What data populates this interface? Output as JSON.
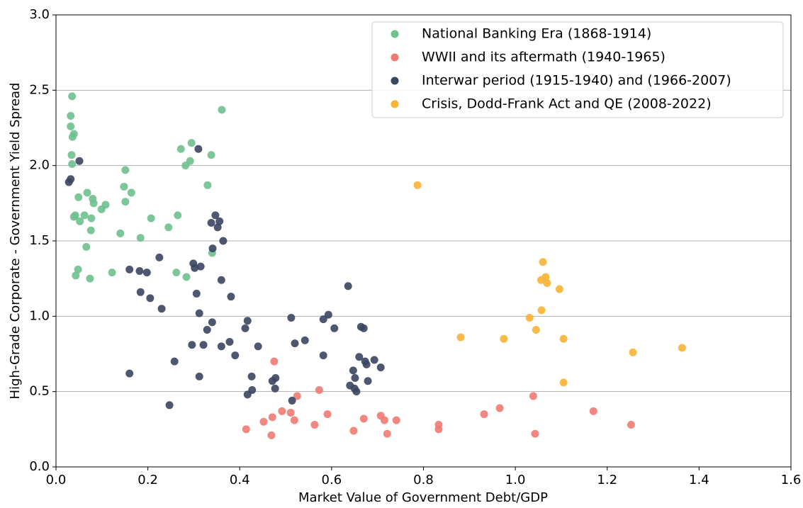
{
  "chart_data": {
    "type": "scatter",
    "xlabel": "Market Value of Government Debt/GDP",
    "ylabel": "High-Grade Corporate - Government Yield Spread",
    "xlim": [
      0,
      1.6
    ],
    "ylim": [
      0,
      3.0
    ],
    "xticks": [
      {
        "value": 0,
        "label": "0.0"
      },
      {
        "value": 0.2,
        "label": "0.2"
      },
      {
        "value": 0.4,
        "label": "0.4"
      },
      {
        "value": 0.6,
        "label": "0.6"
      },
      {
        "value": 0.8,
        "label": "0.8"
      },
      {
        "value": 1.0,
        "label": "1.0"
      },
      {
        "value": 1.2,
        "label": "1.2"
      },
      {
        "value": 1.4,
        "label": "1.4"
      },
      {
        "value": 1.6,
        "label": "1.6"
      }
    ],
    "yticks": [
      {
        "value": 0,
        "label": "0.0"
      },
      {
        "value": 0.5,
        "label": "0.5"
      },
      {
        "value": 1.0,
        "label": "1.0"
      },
      {
        "value": 1.5,
        "label": "1.5"
      },
      {
        "value": 2.0,
        "label": "2.0"
      },
      {
        "value": 2.5,
        "label": "2.5"
      },
      {
        "value": 3.0,
        "label": "3.0"
      }
    ],
    "grid": "y",
    "legend": "upper right",
    "series": [
      {
        "name": "National Banking Era (1868-1914)",
        "color": "#6fc08e",
        "x": [
          0.035,
          0.032,
          0.032,
          0.039,
          0.036,
          0.034,
          0.035,
          0.039,
          0.042,
          0.049,
          0.052,
          0.062,
          0.068,
          0.066,
          0.076,
          0.077,
          0.08,
          0.082,
          0.099,
          0.108,
          0.048,
          0.043,
          0.074,
          0.122,
          0.14,
          0.151,
          0.148,
          0.151,
          0.164,
          0.184,
          0.207,
          0.245,
          0.265,
          0.262,
          0.272,
          0.282,
          0.292,
          0.295,
          0.284,
          0.33,
          0.338,
          0.361,
          0.34
        ],
        "values": [
          2.46,
          2.33,
          2.26,
          2.21,
          2.19,
          2.07,
          2.01,
          1.66,
          1.67,
          1.79,
          1.63,
          1.67,
          1.82,
          1.46,
          1.57,
          1.65,
          1.78,
          1.75,
          1.71,
          1.74,
          1.31,
          1.27,
          1.25,
          1.29,
          1.55,
          1.97,
          1.86,
          1.76,
          1.82,
          1.52,
          1.65,
          1.59,
          1.67,
          1.29,
          2.11,
          2.0,
          2.03,
          2.15,
          1.26,
          1.87,
          2.07,
          2.37,
          1.42
        ]
      },
      {
        "name": "WWII and its aftermath (1940-1965)",
        "color": "#f07a72",
        "x": [
          0.475,
          0.414,
          0.452,
          0.471,
          0.469,
          0.492,
          0.511,
          0.519,
          0.525,
          0.563,
          0.573,
          0.591,
          0.648,
          0.67,
          0.707,
          0.715,
          0.721,
          0.741,
          0.833,
          0.833,
          0.932,
          0.966,
          1.039,
          1.043,
          1.17,
          1.252
        ],
        "values": [
          0.7,
          0.25,
          0.3,
          0.33,
          0.21,
          0.37,
          0.36,
          0.31,
          0.47,
          0.28,
          0.51,
          0.35,
          0.24,
          0.32,
          0.34,
          0.31,
          0.22,
          0.31,
          0.28,
          0.25,
          0.35,
          0.39,
          0.47,
          0.22,
          0.37,
          0.28
        ]
      },
      {
        "name": "Interwar period (1915-1940) and (1966-2007)",
        "color": "#3a4660",
        "x": [
          0.028,
          0.032,
          0.051,
          0.16,
          0.16,
          0.182,
          0.198,
          0.184,
          0.205,
          0.225,
          0.23,
          0.247,
          0.258,
          0.296,
          0.299,
          0.302,
          0.306,
          0.31,
          0.312,
          0.312,
          0.315,
          0.321,
          0.329,
          0.338,
          0.34,
          0.341,
          0.347,
          0.352,
          0.356,
          0.36,
          0.364,
          0.36,
          0.378,
          0.381,
          0.39,
          0.412,
          0.417,
          0.417,
          0.426,
          0.427,
          0.44,
          0.471,
          0.478,
          0.477,
          0.514,
          0.512,
          0.52,
          0.542,
          0.582,
          0.582,
          0.593,
          0.606,
          0.636,
          0.64,
          0.647,
          0.65,
          0.651,
          0.654,
          0.66,
          0.664,
          0.67,
          0.673,
          0.676,
          0.679,
          0.693,
          0.707
        ],
        "values": [
          1.89,
          1.91,
          2.03,
          1.31,
          0.62,
          1.3,
          1.29,
          1.16,
          1.12,
          1.39,
          1.05,
          0.41,
          0.7,
          0.81,
          1.35,
          1.32,
          1.15,
          2.11,
          0.6,
          1.02,
          1.33,
          0.81,
          0.91,
          1.62,
          0.96,
          1.45,
          1.67,
          1.59,
          1.63,
          1.24,
          1.5,
          0.8,
          0.83,
          1.13,
          0.74,
          0.92,
          0.97,
          0.48,
          0.6,
          0.51,
          0.8,
          0.57,
          0.59,
          0.52,
          0.44,
          0.99,
          0.82,
          0.84,
          0.98,
          0.74,
          1.01,
          0.92,
          1.2,
          0.54,
          0.64,
          0.52,
          0.59,
          0.5,
          0.73,
          0.93,
          0.92,
          0.7,
          0.68,
          0.57,
          0.71,
          0.66
        ]
      },
      {
        "name": "Crisis, Dodd-Frank Act and QE (2008-2022)",
        "color": "#f9b233",
        "x": [
          0.787,
          0.881,
          0.975,
          1.031,
          1.045,
          1.057,
          1.056,
          1.06,
          1.066,
          1.069,
          1.096,
          1.105,
          1.105,
          1.256,
          1.363
        ],
        "values": [
          1.87,
          0.86,
          0.85,
          0.99,
          0.91,
          1.04,
          1.24,
          1.36,
          1.26,
          1.22,
          1.18,
          0.85,
          0.56,
          0.76,
          0.79
        ]
      }
    ]
  }
}
